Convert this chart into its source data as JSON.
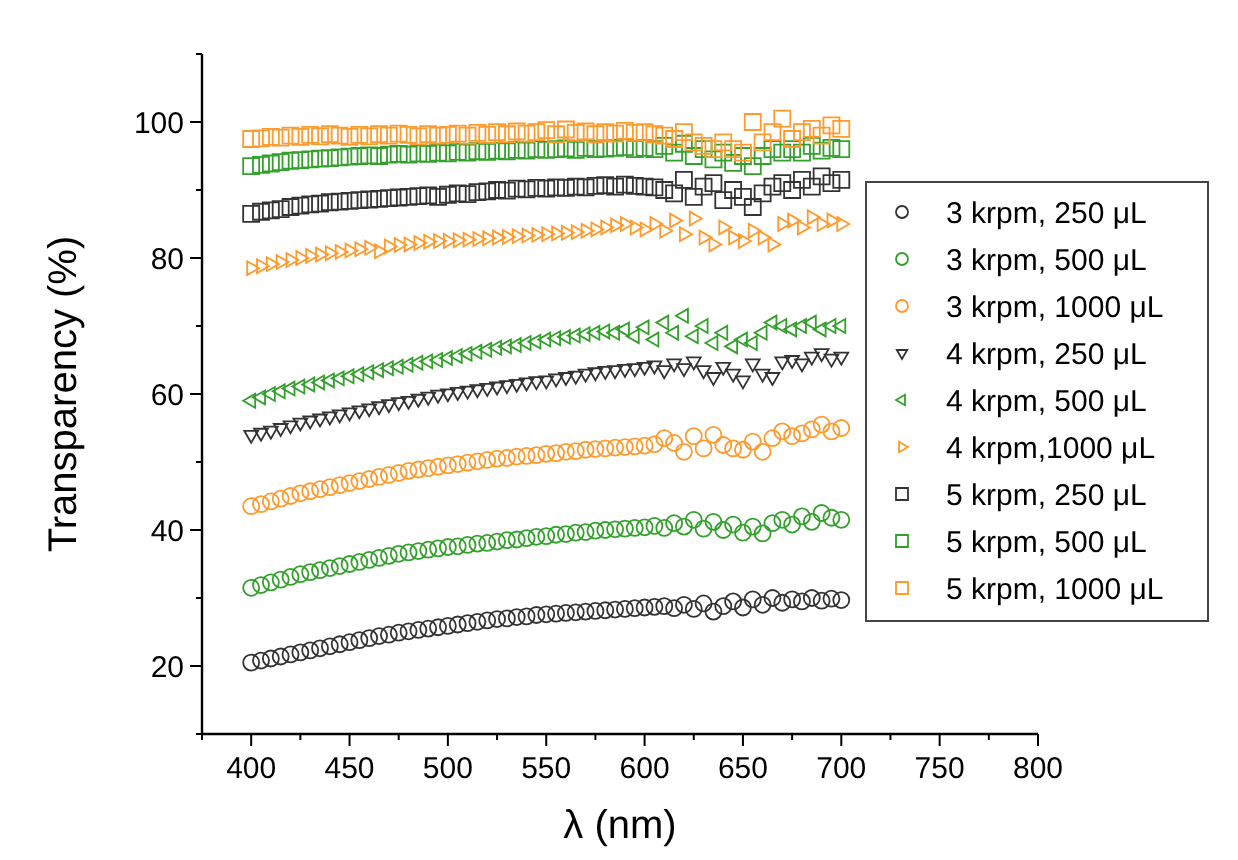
{
  "chart_data": {
    "type": "scatter",
    "xlabel": "λ (nm)",
    "ylabel": "Transparency (%)",
    "x": [
      400,
      405,
      410,
      415,
      420,
      425,
      430,
      435,
      440,
      445,
      450,
      455,
      460,
      465,
      470,
      475,
      480,
      485,
      490,
      495,
      500,
      505,
      510,
      515,
      520,
      525,
      530,
      535,
      540,
      545,
      550,
      555,
      560,
      565,
      570,
      575,
      580,
      585,
      590,
      595,
      600,
      605,
      610,
      615,
      620,
      625,
      630,
      635,
      640,
      645,
      650,
      655,
      660,
      665,
      670,
      675,
      680,
      685,
      690,
      695,
      700
    ],
    "xlim": [
      375,
      800
    ],
    "xticks": [
      {
        "value": 375,
        "label": null
      },
      400,
      {
        "value": 425,
        "label": null
      },
      450,
      {
        "value": 475,
        "label": null
      },
      500,
      {
        "value": 525,
        "label": null
      },
      550,
      {
        "value": 575,
        "label": null
      },
      600,
      {
        "value": 625,
        "label": null
      },
      650,
      {
        "value": 675,
        "label": null
      },
      700,
      {
        "value": 725,
        "label": null
      },
      750,
      {
        "value": 775,
        "label": null
      },
      800
    ],
    "ylim": [
      10,
      110
    ],
    "yticks": [
      {
        "value": 10,
        "label": null
      },
      20,
      {
        "value": 30,
        "label": null
      },
      40,
      {
        "value": 50,
        "label": null
      },
      60,
      {
        "value": 70,
        "label": null
      },
      80,
      {
        "value": 90,
        "label": null
      },
      100,
      {
        "value": 110,
        "label": null
      }
    ],
    "legend": "right",
    "grid": false,
    "series": [
      {
        "name": "3 krpm, 250 μL",
        "color": "#333333",
        "marker": "circle",
        "values": [
          20.5,
          20.8,
          21.1,
          21.4,
          21.7,
          22.0,
          22.3,
          22.6,
          22.9,
          23.2,
          23.5,
          23.8,
          24.1,
          24.4,
          24.6,
          24.9,
          25.1,
          25.3,
          25.5,
          25.7,
          25.9,
          26.1,
          26.3,
          26.5,
          26.7,
          26.9,
          27.0,
          27.2,
          27.3,
          27.5,
          27.6,
          27.7,
          27.8,
          27.9,
          28.0,
          28.1,
          28.2,
          28.3,
          28.4,
          28.5,
          28.6,
          28.7,
          28.8,
          28.5,
          29.0,
          28.4,
          29.2,
          28.0,
          28.8,
          29.5,
          28.6,
          29.8,
          29.0,
          30.0,
          29.3,
          29.8,
          29.5,
          30.0,
          29.6,
          29.9,
          29.7
        ]
      },
      {
        "name": "3 krpm, 500 μL",
        "color": "#33a02c",
        "marker": "circle",
        "values": [
          31.5,
          31.9,
          32.3,
          32.7,
          33.1,
          33.5,
          33.8,
          34.1,
          34.4,
          34.7,
          35.0,
          35.3,
          35.6,
          35.9,
          36.2,
          36.5,
          36.7,
          36.9,
          37.1,
          37.3,
          37.5,
          37.6,
          37.8,
          38.0,
          38.1,
          38.3,
          38.5,
          38.6,
          38.8,
          39.0,
          39.1,
          39.3,
          39.4,
          39.6,
          39.7,
          39.9,
          40.0,
          40.1,
          40.2,
          40.3,
          40.4,
          40.6,
          40.3,
          41.0,
          40.5,
          41.5,
          40.2,
          41.2,
          40.0,
          40.8,
          39.6,
          40.5,
          39.5,
          41.0,
          41.5,
          40.8,
          42.0,
          41.2,
          42.5,
          41.8,
          41.5
        ]
      },
      {
        "name": "3 krpm, 1000 μL",
        "color": "#ff9a2e",
        "marker": "circle",
        "values": [
          43.5,
          43.8,
          44.2,
          44.6,
          45.0,
          45.4,
          45.7,
          46.0,
          46.3,
          46.6,
          46.9,
          47.2,
          47.5,
          47.8,
          48.1,
          48.4,
          48.7,
          48.9,
          49.1,
          49.3,
          49.5,
          49.7,
          49.9,
          50.1,
          50.3,
          50.5,
          50.6,
          50.8,
          50.9,
          51.0,
          51.2,
          51.3,
          51.5,
          51.6,
          51.8,
          51.9,
          52.0,
          52.1,
          52.2,
          52.3,
          52.4,
          52.6,
          53.5,
          52.8,
          51.5,
          53.8,
          52.0,
          54.0,
          52.5,
          52.0,
          51.8,
          53.0,
          51.5,
          53.5,
          54.5,
          53.8,
          54.2,
          54.8,
          55.5,
          54.5,
          55.0
        ]
      },
      {
        "name": "4 krpm, 250 μL",
        "color": "#333333",
        "marker": "triangle-down",
        "values": [
          54.0,
          54.3,
          54.6,
          55.0,
          55.4,
          55.8,
          56.1,
          56.4,
          56.7,
          57.0,
          57.3,
          57.6,
          57.9,
          58.2,
          58.5,
          58.8,
          59.0,
          59.3,
          59.6,
          59.9,
          60.1,
          60.3,
          60.5,
          60.7,
          60.9,
          61.1,
          61.3,
          61.5,
          61.7,
          61.9,
          62.0,
          62.3,
          62.5,
          62.7,
          63.0,
          63.2,
          63.4,
          63.5,
          63.7,
          63.8,
          64.0,
          64.2,
          63.5,
          64.5,
          63.8,
          64.8,
          63.5,
          62.5,
          64.0,
          63.0,
          62.0,
          64.5,
          63.0,
          62.5,
          64.8,
          65.0,
          64.5,
          65.5,
          66.0,
          65.2,
          65.5
        ]
      },
      {
        "name": "4 krpm, 500 μL",
        "color": "#33a02c",
        "marker": "triangle-left",
        "values": [
          59.0,
          59.5,
          60.0,
          60.4,
          60.8,
          61.1,
          61.4,
          61.7,
          62.0,
          62.3,
          62.6,
          62.9,
          63.2,
          63.5,
          63.8,
          64.0,
          64.3,
          64.6,
          64.8,
          65.0,
          65.3,
          65.6,
          65.9,
          66.2,
          66.5,
          66.8,
          67.0,
          67.2,
          67.5,
          67.7,
          68.0,
          68.2,
          68.4,
          68.6,
          68.8,
          69.0,
          69.2,
          69.0,
          69.5,
          68.5,
          69.8,
          68.0,
          70.5,
          69.0,
          71.5,
          68.5,
          70.0,
          67.5,
          69.0,
          67.0,
          68.0,
          67.5,
          69.0,
          70.5,
          70.0,
          69.5,
          70.0,
          70.5,
          69.5,
          70.0,
          70.0
        ]
      },
      {
        "name": "4 krpm,1000 μL",
        "color": "#ff9a2e",
        "marker": "triangle-right",
        "values": [
          78.5,
          78.8,
          79.1,
          79.4,
          79.7,
          80.0,
          80.3,
          80.5,
          80.7,
          80.9,
          81.1,
          81.3,
          81.5,
          81.0,
          81.7,
          81.9,
          82.0,
          82.2,
          82.4,
          82.5,
          82.5,
          82.6,
          82.7,
          82.8,
          82.9,
          83.0,
          83.1,
          83.2,
          83.3,
          83.4,
          83.5,
          83.6,
          83.7,
          83.8,
          84.0,
          84.2,
          84.5,
          84.8,
          85.0,
          84.5,
          84.2,
          85.0,
          84.0,
          85.5,
          83.5,
          85.8,
          83.0,
          82.0,
          84.5,
          83.0,
          82.5,
          84.0,
          83.0,
          82.0,
          85.0,
          85.5,
          84.5,
          86.0,
          85.0,
          85.5,
          85.0
        ]
      },
      {
        "name": "5 krpm, 250 μL",
        "color": "#333333",
        "marker": "square",
        "values": [
          86.5,
          86.8,
          87.0,
          87.2,
          87.5,
          87.7,
          87.9,
          88.0,
          88.2,
          88.3,
          88.4,
          88.5,
          88.6,
          88.7,
          88.8,
          88.9,
          89.0,
          89.1,
          89.2,
          89.0,
          89.3,
          89.5,
          89.4,
          89.7,
          89.8,
          90.0,
          89.9,
          90.2,
          90.1,
          90.3,
          90.2,
          90.4,
          90.3,
          90.5,
          90.4,
          90.6,
          90.7,
          90.5,
          90.8,
          90.6,
          90.5,
          90.4,
          90.0,
          89.5,
          91.5,
          89.0,
          90.5,
          91.0,
          88.5,
          90.0,
          89.0,
          87.5,
          89.5,
          90.5,
          91.0,
          90.0,
          91.5,
          90.5,
          92.0,
          91.0,
          91.5
        ]
      },
      {
        "name": "5 krpm, 500 μL",
        "color": "#33a02c",
        "marker": "square",
        "values": [
          93.5,
          93.7,
          93.9,
          94.1,
          94.3,
          94.4,
          94.5,
          94.6,
          94.7,
          94.8,
          94.9,
          95.0,
          95.1,
          95.0,
          95.2,
          95.3,
          95.2,
          95.4,
          95.3,
          95.5,
          95.4,
          95.6,
          95.5,
          95.7,
          95.6,
          95.8,
          95.7,
          95.9,
          95.8,
          96.0,
          95.9,
          96.0,
          96.1,
          95.9,
          96.2,
          96.0,
          96.1,
          96.2,
          96.3,
          96.0,
          96.2,
          96.0,
          96.5,
          95.5,
          96.8,
          95.0,
          96.0,
          94.5,
          95.5,
          94.0,
          95.0,
          93.5,
          95.0,
          96.0,
          95.5,
          96.0,
          95.5,
          96.5,
          95.8,
          96.2,
          96.0
        ]
      },
      {
        "name": "5 krpm, 1000 μL",
        "color": "#ff9a2e",
        "marker": "square",
        "values": [
          97.5,
          97.6,
          97.8,
          97.7,
          98.0,
          97.8,
          98.1,
          97.9,
          98.2,
          98.0,
          97.8,
          98.1,
          97.9,
          98.2,
          98.0,
          98.3,
          98.1,
          97.9,
          98.2,
          98.0,
          98.1,
          98.3,
          98.0,
          98.4,
          98.1,
          98.5,
          98.2,
          98.6,
          98.3,
          98.5,
          98.8,
          98.2,
          98.9,
          98.4,
          98.6,
          98.2,
          98.5,
          98.3,
          98.7,
          98.4,
          98.5,
          98.2,
          98.0,
          97.5,
          98.5,
          97.0,
          96.5,
          96.0,
          97.0,
          96.0,
          95.5,
          100.0,
          97.0,
          98.5,
          100.5,
          97.5,
          98.5,
          99.0,
          98.0,
          99.5,
          99.0
        ]
      }
    ]
  }
}
